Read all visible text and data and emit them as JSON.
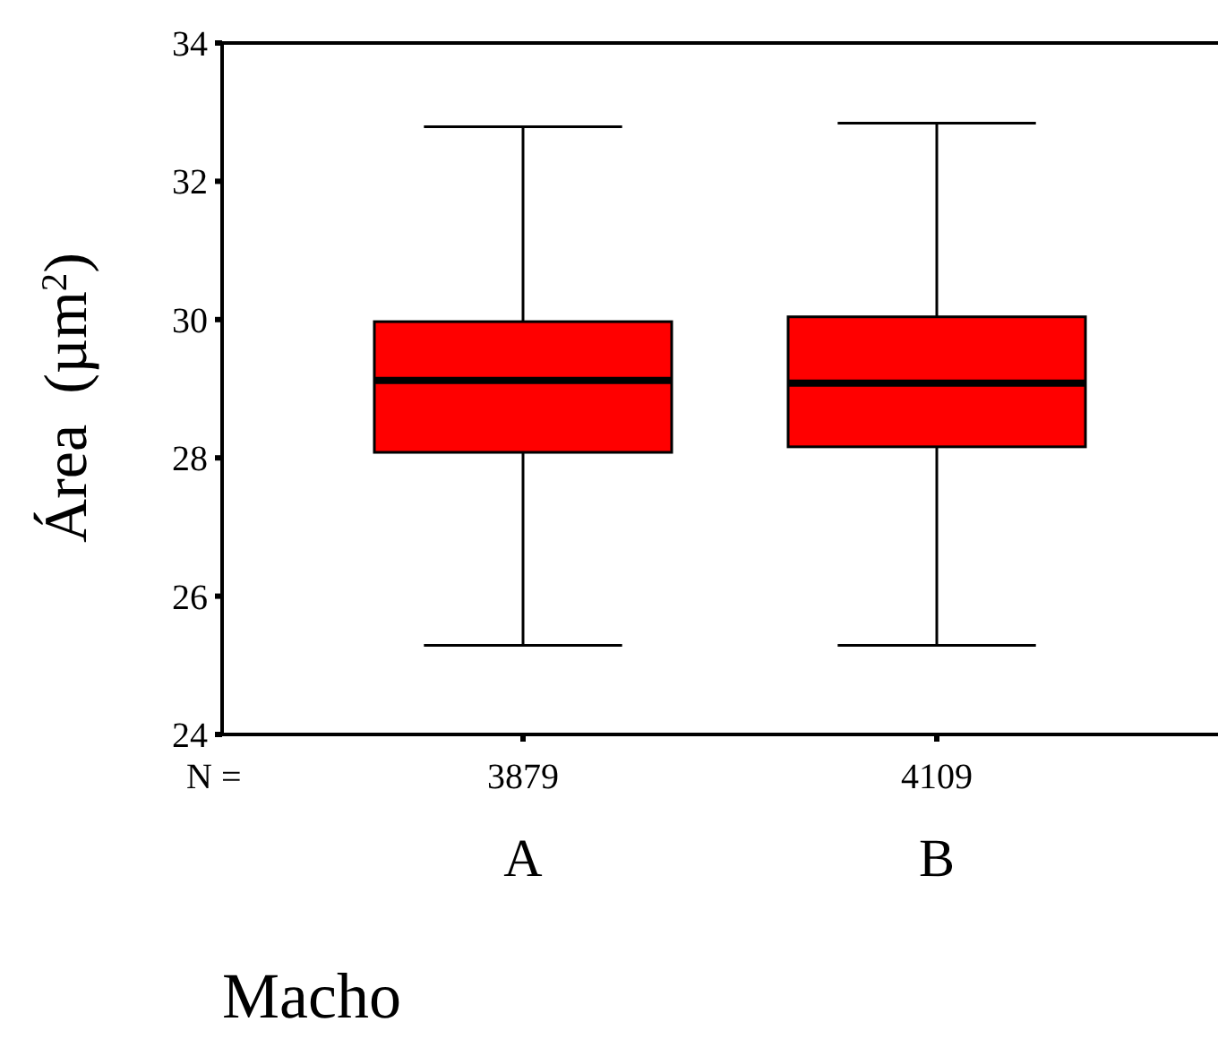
{
  "chart_data": {
    "type": "box",
    "categories": [
      "A",
      "B"
    ],
    "xlabel": "Macho",
    "ylabel": "Área  (µm$^{2}$)",
    "ylim": [
      24,
      34
    ],
    "yticks": [
      24,
      26,
      28,
      30,
      32,
      34
    ],
    "color": "#ff0000",
    "boxes": [
      {
        "low": 25.29,
        "q1": 28.08,
        "median": 29.12,
        "q3": 29.97,
        "high": 32.79
      },
      {
        "low": 25.29,
        "q1": 28.16,
        "median": 29.08,
        "q3": 30.04,
        "high": 32.84
      }
    ],
    "annotations": [
      "N =",
      "3879",
      "4109"
    ]
  }
}
